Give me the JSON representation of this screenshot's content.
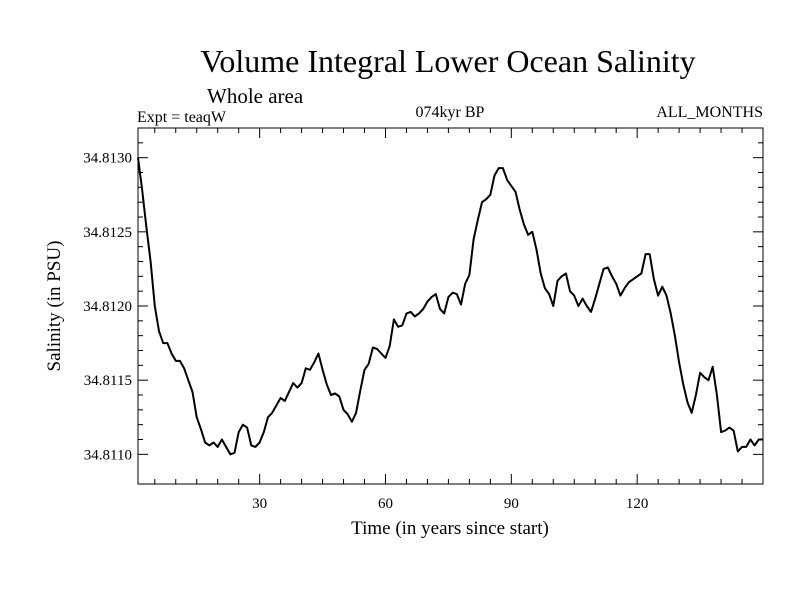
{
  "chart_data": {
    "type": "line",
    "title": "Volume Integral Lower Ocean Salinity",
    "subtitle": "Whole area",
    "experiment_label": "Expt = teaqW",
    "period_label": "074kyr BP",
    "months_label": "ALL_MONTHS",
    "xlabel": "Time (in years since start)",
    "ylabel": "Salinity (in PSU)",
    "xlim": [
      1,
      150
    ],
    "ylim": [
      34.8108,
      34.8132
    ],
    "x_ticks": [
      30,
      60,
      90,
      120
    ],
    "y_ticks": [
      34.811,
      34.8115,
      34.812,
      34.8125,
      34.813
    ],
    "y_tick_labels": [
      "34.8110",
      "34.8115",
      "34.8120",
      "34.8125",
      "34.8130"
    ],
    "series": [
      {
        "name": "Salinity",
        "color": "#000000",
        "x": [
          1,
          2,
          3,
          4,
          5,
          6,
          7,
          8,
          9,
          10,
          11,
          12,
          13,
          14,
          15,
          16,
          17,
          18,
          19,
          20,
          21,
          22,
          23,
          24,
          25,
          26,
          27,
          28,
          29,
          30,
          31,
          32,
          33,
          34,
          35,
          36,
          37,
          38,
          39,
          40,
          41,
          42,
          43,
          44,
          45,
          46,
          47,
          48,
          49,
          50,
          51,
          52,
          53,
          54,
          55,
          56,
          57,
          58,
          59,
          60,
          61,
          62,
          63,
          64,
          65,
          66,
          67,
          68,
          69,
          70,
          71,
          72,
          73,
          74,
          75,
          76,
          77,
          78,
          79,
          80,
          81,
          82,
          83,
          84,
          85,
          86,
          87,
          88,
          89,
          90,
          91,
          92,
          93,
          94,
          95,
          96,
          97,
          98,
          99,
          100,
          101,
          102,
          103,
          104,
          105,
          106,
          107,
          108,
          109,
          110,
          111,
          112,
          113,
          114,
          115,
          116,
          117,
          118,
          119,
          120,
          121,
          122,
          123,
          124,
          125,
          126,
          127,
          128,
          129,
          130,
          131,
          132,
          133,
          134,
          135,
          136,
          137,
          138,
          139,
          140,
          141,
          142,
          143,
          144,
          145,
          146,
          147,
          148,
          149,
          150
        ],
        "values": [
          34.813,
          34.81278,
          34.81253,
          34.8123,
          34.812,
          34.81183,
          34.81175,
          34.81175,
          34.81168,
          34.81163,
          34.81163,
          34.81158,
          34.8115,
          34.81142,
          34.81125,
          34.81117,
          34.81108,
          34.81106,
          34.81108,
          34.81105,
          34.8111,
          34.81105,
          34.811,
          34.81101,
          34.81115,
          34.8112,
          34.81118,
          34.81106,
          34.81105,
          34.81108,
          34.81115,
          34.81125,
          34.81128,
          34.81133,
          34.81138,
          34.81136,
          34.81142,
          34.81148,
          34.81145,
          34.81148,
          34.81158,
          34.81157,
          34.81162,
          34.81168,
          34.81157,
          34.81147,
          34.8114,
          34.81141,
          34.81139,
          34.8113,
          34.81127,
          34.81122,
          34.81128,
          34.81143,
          34.81157,
          34.81161,
          34.81172,
          34.81171,
          34.81168,
          34.81165,
          34.81173,
          34.81191,
          34.81186,
          34.81187,
          34.81195,
          34.81196,
          34.81193,
          34.81195,
          34.81198,
          34.81203,
          34.81206,
          34.81208,
          34.81198,
          34.81195,
          34.81206,
          34.81209,
          34.81208,
          34.81201,
          34.81215,
          34.81221,
          34.81245,
          34.81258,
          34.8127,
          34.81272,
          34.81275,
          34.81288,
          34.81293,
          34.81293,
          34.81285,
          34.81281,
          34.81277,
          34.81265,
          34.81255,
          34.81248,
          34.8125,
          34.81238,
          34.81222,
          34.81212,
          34.81208,
          34.812,
          34.81217,
          34.8122,
          34.81222,
          34.8121,
          34.81207,
          34.812,
          34.81205,
          34.812,
          34.81196,
          34.81205,
          34.81215,
          34.81225,
          34.81226,
          34.8122,
          34.81215,
          34.81207,
          34.81212,
          34.81216,
          34.81218,
          34.8122,
          34.81222,
          34.81235,
          34.81235,
          34.81218,
          34.81207,
          34.81213,
          34.81207,
          34.81195,
          34.8118,
          34.81162,
          34.81147,
          34.81135,
          34.81128,
          34.8114,
          34.81155,
          34.81152,
          34.8115,
          34.81159,
          34.8114,
          34.81115,
          34.81116,
          34.81118,
          34.81116,
          34.81102,
          34.81105,
          34.81105,
          34.8111,
          34.81106,
          34.8111,
          34.8111
        ]
      }
    ]
  }
}
